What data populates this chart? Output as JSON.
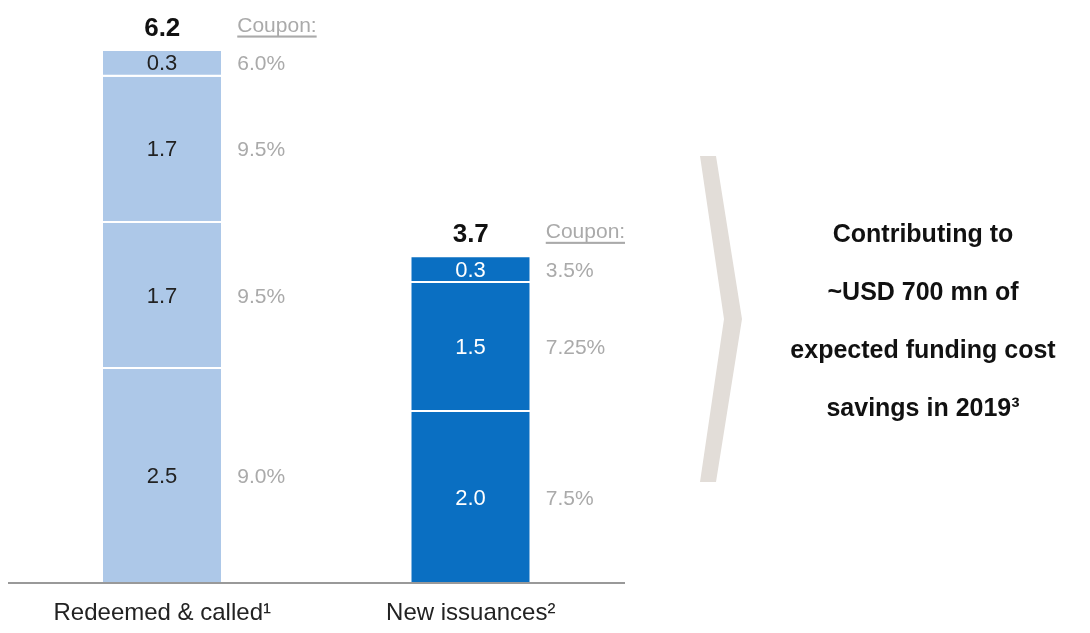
{
  "chart_data": {
    "type": "bar",
    "stacked": true,
    "categories": [
      "Redeemed & called¹",
      "New issuances²"
    ],
    "series": [
      {
        "colors": [
          "#adc8e8",
          "#0a6fc2"
        ],
        "values": [
          2.5,
          2.0
        ],
        "value_labels": [
          "2.5",
          "2.0"
        ]
      },
      {
        "colors": [
          "#adc8e8",
          "#0a6fc2"
        ],
        "values": [
          1.7,
          1.5
        ],
        "value_labels": [
          "1.7",
          "1.5"
        ]
      },
      {
        "colors": [
          "#adc8e8",
          "#0a6fc2"
        ],
        "values": [
          1.7,
          0.3
        ],
        "value_labels": [
          "1.7",
          "0.3"
        ]
      },
      {
        "colors": [
          "#adc8e8",
          "#0a6fc2"
        ],
        "values": [
          0.3,
          null
        ],
        "value_labels": [
          "0.3",
          null
        ]
      }
    ],
    "totals": [
      "6.2",
      "3.7"
    ],
    "annotations": [
      "Coupon:",
      "6.0%",
      "9.5%",
      "9.5%",
      "9.0%",
      "Coupon:",
      "3.5%",
      "7.25%",
      "7.5%",
      "Contributing to\n~USD 700 mn of\nexpected funding cost\nsavings in 2019³"
    ],
    "grid": false,
    "legend": false
  }
}
